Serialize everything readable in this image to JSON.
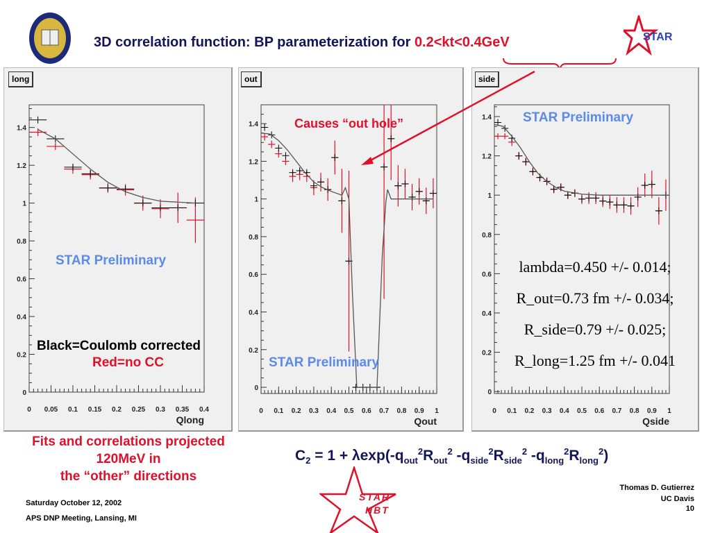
{
  "header": {
    "title_main": "3D correlation function: BP parameterization for ",
    "title_highlight": "0.2<kt<0.4GeV",
    "logo_left": "UC Davis seal",
    "logo_right": "STAR"
  },
  "colors": {
    "title": "#14145a",
    "red": "#e0102a",
    "preliminary": "#5b8be8",
    "panel": "#f0f0f0"
  },
  "annotations": {
    "long_preliminary": "STAR Preliminary",
    "black_label": "Black=Coulomb corrected",
    "red_label": "Red=no CC",
    "out_hole": "Causes “out hole”",
    "out_preliminary": "STAR Preliminary",
    "side_preliminary": "STAR Preliminary",
    "params": [
      "lambda=0.450 +/- 0.014;",
      "R_out=0.73 fm +/- 0.034;",
      "R_side=0.79 +/- 0.025;",
      "R_long=1.25 fm +/- 0.041"
    ]
  },
  "footer": {
    "note": [
      "Fits and correlations projected",
      "120MeV in",
      "the “other” directions"
    ],
    "formula": {
      "a": "C",
      "a_sub": "2",
      "b": " = 1 + λexp(-q",
      "out": "out",
      "two": "2",
      "R": "R",
      "side": "side",
      "long": "long",
      "minus": " -q",
      "close": ")"
    },
    "date": "Saturday October 12, 2002",
    "meeting": "APS DNP Meeting, Lansing, MI",
    "author": "Thomas D. Gutierrez",
    "institution": "UC Davis",
    "page": "10",
    "logo_text": [
      "STAR",
      "HBT"
    ]
  },
  "chart_data": [
    {
      "type": "scatter",
      "name": "long",
      "xlabel": "Qlong",
      "xlim": [
        0,
        0.4
      ],
      "ylim": [
        0,
        1.52
      ],
      "bin_width": 0.04,
      "x_ticks": [
        "0",
        "0.05",
        "0.1",
        "0.15",
        "0.2",
        "0.25",
        "0.3",
        "0.35",
        "0.4"
      ],
      "x_tick_values": [
        0,
        0.05,
        0.1,
        0.15,
        0.2,
        0.25,
        0.3,
        0.35,
        0.4
      ],
      "y_ticks": [
        "0",
        "0.2",
        "0.4",
        "0.6",
        "0.8",
        "1",
        "1.2",
        "1.4"
      ],
      "y_tick_values": [
        0,
        0.2,
        0.4,
        0.6,
        0.8,
        1,
        1.2,
        1.4
      ],
      "x": [
        0.02,
        0.06,
        0.1,
        0.14,
        0.18,
        0.22,
        0.26,
        0.3,
        0.34,
        0.38
      ],
      "black": [
        1.44,
        1.34,
        1.19,
        1.155,
        1.08,
        1.075,
        1.0,
        0.975,
        0.975,
        1.0
      ],
      "red": [
        1.375,
        1.3,
        1.18,
        1.15,
        1.08,
        1.07,
        1.0,
        0.97,
        0.975,
        0.91
      ],
      "red_err": [
        0.02,
        0.02,
        0.025,
        0.025,
        0.025,
        0.03,
        0.04,
        0.05,
        0.08,
        0.12
      ],
      "fit": [
        [
          0.02,
          1.39
        ],
        [
          0.06,
          1.34
        ],
        [
          0.1,
          1.26
        ],
        [
          0.14,
          1.18
        ],
        [
          0.18,
          1.11
        ],
        [
          0.22,
          1.06
        ],
        [
          0.26,
          1.03
        ],
        [
          0.3,
          1.01
        ],
        [
          0.34,
          1.005
        ],
        [
          0.38,
          1.0
        ]
      ]
    },
    {
      "type": "scatter",
      "name": "out",
      "xlabel": "Qout",
      "xlim": [
        0,
        1
      ],
      "ylim": [
        -0.033,
        1.5
      ],
      "bin_width": 0.04,
      "x_ticks": [
        "0",
        "0.1",
        "0.2",
        "0.3",
        "0.4",
        "0.5",
        "0.6",
        "0.7",
        "0.8",
        "0.9",
        "1"
      ],
      "x_tick_values": [
        0,
        0.1,
        0.2,
        0.3,
        0.4,
        0.5,
        0.6,
        0.7,
        0.8,
        0.9,
        1
      ],
      "y_ticks": [
        "0",
        "0.2",
        "0.4",
        "0.6",
        "0.8",
        "1",
        "1.2",
        "1.4"
      ],
      "y_tick_values": [
        0,
        0.2,
        0.4,
        0.6,
        0.8,
        1,
        1.2,
        1.4
      ],
      "x": [
        0.02,
        0.06,
        0.1,
        0.14,
        0.18,
        0.22,
        0.26,
        0.3,
        0.34,
        0.38,
        0.42,
        0.46,
        0.5,
        0.54,
        0.58,
        0.62,
        0.66,
        0.7,
        0.74,
        0.78,
        0.82,
        0.86,
        0.9,
        0.94,
        0.98
      ],
      "black": [
        1.38,
        1.34,
        1.27,
        1.23,
        1.14,
        1.15,
        1.14,
        1.07,
        1.09,
        1.05,
        1.22,
        0.99,
        0.67,
        0,
        0,
        0,
        0,
        1.17,
        1.32,
        1.07,
        1.08,
        1.01,
        1.04,
        0.99,
        1.03
      ],
      "red": [
        1.33,
        1.29,
        1.24,
        1.2,
        1.12,
        1.13,
        1.12,
        1.06,
        1.09,
        1.05,
        1.22,
        0.99,
        0.67,
        0,
        0,
        0,
        0,
        1.17,
        1.32,
        1.07,
        1.08,
        1.01,
        1.04,
        0.99,
        1.03
      ],
      "red_err": [
        0.02,
        0.02,
        0.02,
        0.02,
        0.03,
        0.03,
        0.03,
        0.04,
        0.05,
        0.06,
        0.09,
        0.17,
        0.48,
        0,
        0,
        0,
        0,
        0.7,
        0.22,
        0.11,
        0.08,
        0.07,
        0.07,
        0.07,
        0.08
      ],
      "fit": [
        [
          0,
          1.35
        ],
        [
          0.05,
          1.345
        ],
        [
          0.1,
          1.31
        ],
        [
          0.15,
          1.26
        ],
        [
          0.2,
          1.2
        ],
        [
          0.25,
          1.14
        ],
        [
          0.3,
          1.09
        ],
        [
          0.35,
          1.06
        ],
        [
          0.4,
          1.04
        ],
        [
          0.46,
          1.02
        ],
        [
          0.48,
          1.06
        ],
        [
          0.5,
          1.0
        ],
        [
          0.52,
          0.5
        ],
        [
          0.545,
          0
        ],
        [
          0.66,
          0
        ],
        [
          0.69,
          0.7
        ],
        [
          0.71,
          0.98
        ],
        [
          0.72,
          1.05
        ],
        [
          0.74,
          1.0
        ],
        [
          0.98,
          1.0
        ]
      ]
    },
    {
      "type": "scatter",
      "name": "side",
      "xlabel": "Qside",
      "xlim": [
        0,
        1
      ],
      "ylim": [
        -0.01,
        1.46
      ],
      "bin_width": 0.04,
      "x_ticks": [
        "0",
        "0.1",
        "0.2",
        "0.3",
        "0.4",
        "0.5",
        "0.6",
        "0.7",
        "0.8",
        "0.9",
        "1"
      ],
      "x_tick_values": [
        0,
        0.1,
        0.2,
        0.3,
        0.4,
        0.5,
        0.6,
        0.7,
        0.8,
        0.9,
        1
      ],
      "y_ticks": [
        "0",
        "0.2",
        "0.4",
        "0.6",
        "0.8",
        "1",
        "1.2",
        "1.4"
      ],
      "y_tick_values": [
        0,
        0.2,
        0.4,
        0.6,
        0.8,
        1,
        1.2,
        1.4
      ],
      "x": [
        0.02,
        0.06,
        0.1,
        0.14,
        0.18,
        0.22,
        0.26,
        0.3,
        0.34,
        0.38,
        0.42,
        0.46,
        0.5,
        0.54,
        0.58,
        0.62,
        0.66,
        0.7,
        0.74,
        0.78,
        0.82,
        0.86,
        0.9,
        0.94,
        0.98
      ],
      "black": [
        1.37,
        1.34,
        1.29,
        1.2,
        1.17,
        1.12,
        1.09,
        1.07,
        1.03,
        1.04,
        1.0,
        1.01,
        0.98,
        0.985,
        0.985,
        0.97,
        0.965,
        0.95,
        0.95,
        0.945,
        0.99,
        1.05,
        1.055,
        0.92,
        1.0
      ],
      "red": [
        1.3,
        1.3,
        1.27,
        1.2,
        1.17,
        1.12,
        1.09,
        1.07,
        1.03,
        1.04,
        1.0,
        1.01,
        0.98,
        0.985,
        0.985,
        0.97,
        0.965,
        0.95,
        0.95,
        0.945,
        0.99,
        1.05,
        1.055,
        0.92,
        1.0
      ],
      "red_err": [
        0.015,
        0.015,
        0.02,
        0.02,
        0.02,
        0.02,
        0.02,
        0.02,
        0.02,
        0.02,
        0.02,
        0.02,
        0.025,
        0.03,
        0.03,
        0.03,
        0.035,
        0.04,
        0.04,
        0.045,
        0.05,
        0.06,
        0.07,
        0.07,
        0.08
      ],
      "fit": [
        [
          0,
          1.36
        ],
        [
          0.05,
          1.35
        ],
        [
          0.1,
          1.3
        ],
        [
          0.15,
          1.24
        ],
        [
          0.2,
          1.17
        ],
        [
          0.25,
          1.11
        ],
        [
          0.3,
          1.07
        ],
        [
          0.35,
          1.04
        ],
        [
          0.4,
          1.02
        ],
        [
          0.5,
          1.005
        ],
        [
          0.6,
          1.0
        ],
        [
          1.0,
          1.0
        ]
      ]
    }
  ]
}
